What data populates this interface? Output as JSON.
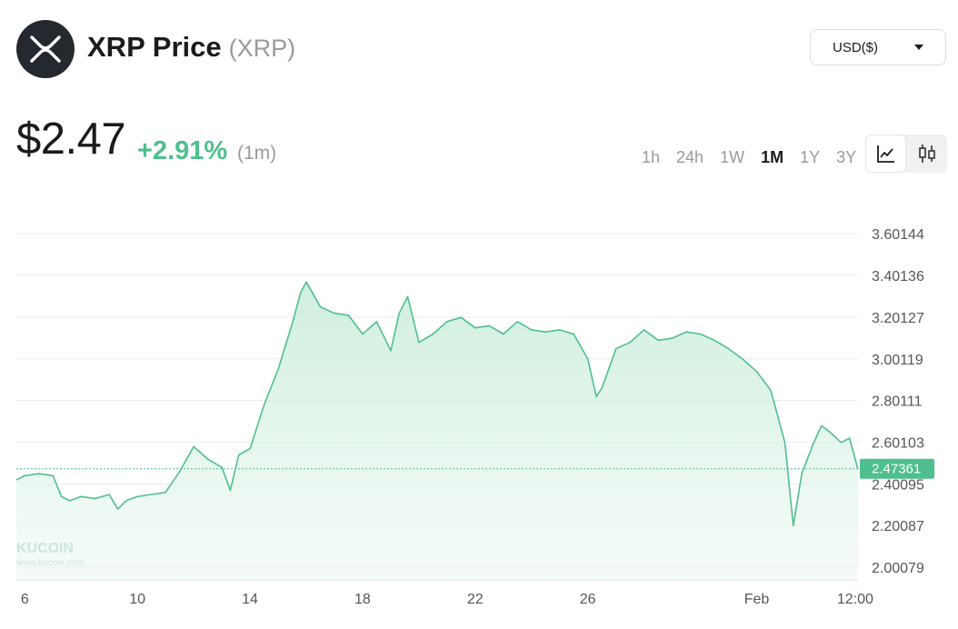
{
  "header": {
    "title": "XRP Price",
    "ticker": "(XRP)",
    "currency": "USD($)"
  },
  "summary": {
    "price": "$2.47",
    "change": "+2.91%",
    "period": "(1m)"
  },
  "ranges": [
    "1h",
    "24h",
    "1W",
    "1M",
    "1Y",
    "3Y"
  ],
  "active_range": "1M",
  "icons": {
    "logo": "xrp-logo-icon",
    "currency_caret": "caret-down-icon",
    "line_chart": "line-chart-icon",
    "candle_chart": "candlestick-icon"
  },
  "watermark": {
    "brand": "KUCOIN",
    "url": "www.kucoin.com"
  },
  "colors": {
    "accent_green": "#4fbf8d",
    "area_fill": "#d9f2e5",
    "price_tag": "#4fbf8d"
  },
  "chart_data": {
    "type": "area",
    "x_tick_labels": [
      "6",
      "10",
      "14",
      "18",
      "22",
      "26",
      "Feb",
      "12:00"
    ],
    "x_tick_days": [
      6,
      10,
      14,
      18,
      22,
      26,
      32,
      35.5
    ],
    "x_range_days": [
      5.7,
      35.6
    ],
    "y_tick_labels": [
      "3.60144",
      "3.40136",
      "3.20127",
      "3.00119",
      "2.80111",
      "2.60103",
      "2.40095",
      "2.20087",
      "2.00079"
    ],
    "ylim": [
      1.94,
      3.72
    ],
    "grid": true,
    "current_value": "2.47361",
    "series": [
      {
        "x": [
          5.7,
          6,
          6.5,
          7,
          7.3,
          7.6,
          8,
          8.5,
          9,
          9.3,
          9.6,
          10,
          10.5,
          11,
          11.5,
          12,
          12.5,
          13,
          13.3,
          13.6,
          14,
          14.5,
          15,
          15.5,
          15.8,
          16,
          16.5,
          17,
          17.5,
          18,
          18.5,
          19,
          19.3,
          19.6,
          20,
          20.5,
          21,
          21.5,
          22,
          22.5,
          23,
          23.5,
          24,
          24.5,
          25,
          25.5,
          26,
          26.3,
          26.5,
          27,
          27.5,
          28,
          28.5,
          29,
          29.5,
          30,
          30.5,
          31,
          31.5,
          32,
          32.5,
          33,
          33.3,
          33.6,
          34,
          34.3,
          34.6,
          35,
          35.3,
          35.6
        ],
        "y": [
          2.42,
          2.44,
          2.45,
          2.44,
          2.34,
          2.32,
          2.34,
          2.33,
          2.35,
          2.28,
          2.32,
          2.34,
          2.35,
          2.36,
          2.46,
          2.58,
          2.52,
          2.48,
          2.37,
          2.54,
          2.57,
          2.78,
          2.95,
          3.17,
          3.32,
          3.37,
          3.25,
          3.22,
          3.21,
          3.12,
          3.18,
          3.04,
          3.22,
          3.3,
          3.08,
          3.12,
          3.18,
          3.2,
          3.15,
          3.16,
          3.12,
          3.18,
          3.14,
          3.13,
          3.14,
          3.12,
          3.0,
          2.82,
          2.86,
          3.05,
          3.08,
          3.14,
          3.09,
          3.1,
          3.13,
          3.12,
          3.09,
          3.05,
          3.0,
          2.94,
          2.85,
          2.6,
          2.2,
          2.45,
          2.59,
          2.68,
          2.65,
          2.6,
          2.62,
          2.47
        ]
      }
    ]
  }
}
